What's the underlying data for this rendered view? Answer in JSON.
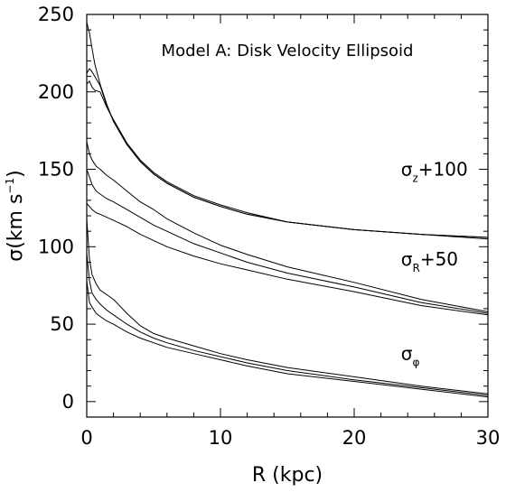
{
  "chart_data": {
    "type": "line",
    "title": "",
    "xlabel": "R (kpc)",
    "ylabel_parts": {
      "sym": "σ",
      "open": "(km s",
      "sup": "−1",
      "close": ")"
    },
    "xlim": [
      0,
      30
    ],
    "ylim": [
      -10,
      250
    ],
    "xticks": [
      0,
      10,
      20,
      30
    ],
    "yticks": [
      0,
      50,
      100,
      150,
      200,
      250
    ],
    "grid": false,
    "legend": "none",
    "annotation": "Model A: Disk Velocity Ellipsoid",
    "series_labels": [
      {
        "main": "σ",
        "sub": "z",
        "suffix": "+100",
        "x": 23.5,
        "y": 146
      },
      {
        "main": "σ",
        "sub": "R",
        "suffix": "+50",
        "x": 23.5,
        "y": 88
      },
      {
        "main": "σ",
        "sub": "φ",
        "suffix": "",
        "x": 23.5,
        "y": 27
      }
    ],
    "series": [
      {
        "group": "z",
        "x": [
          0,
          0.2,
          0.4,
          0.6,
          1,
          1.5,
          2,
          3,
          4,
          5,
          6,
          8,
          10,
          12,
          15,
          20,
          25,
          30
        ],
        "values": [
          245,
          238,
          228,
          218,
          205,
          192,
          181,
          166,
          155,
          147,
          141,
          132,
          126,
          121,
          116,
          111,
          108,
          106
        ]
      },
      {
        "group": "z",
        "x": [
          0,
          0.2,
          0.4,
          0.6,
          1,
          1.5,
          2,
          3,
          4,
          5,
          6,
          8,
          10,
          12,
          15,
          20,
          25,
          30
        ],
        "values": [
          212,
          215,
          213,
          210,
          204,
          191,
          181,
          166,
          155,
          147,
          141,
          132,
          126,
          121,
          116,
          111,
          108,
          106
        ]
      },
      {
        "group": "z",
        "x": [
          0,
          0.2,
          0.4,
          0.6,
          1,
          1.5,
          2,
          3,
          4,
          5,
          6,
          8,
          10,
          12,
          15,
          20,
          25,
          30
        ],
        "values": [
          205,
          207,
          203,
          201,
          200,
          190,
          182,
          167,
          156,
          148,
          142,
          133,
          127,
          122,
          116,
          111,
          108,
          105
        ]
      },
      {
        "group": "R",
        "x": [
          0,
          0.2,
          0.4,
          0.7,
          1,
          1.5,
          2,
          3,
          4,
          5,
          6,
          8,
          10,
          12,
          15,
          20,
          25,
          30
        ],
        "values": [
          168,
          160,
          156,
          152,
          150,
          146,
          143,
          136,
          129,
          124,
          118,
          109,
          101,
          95,
          87,
          77,
          66,
          58
        ]
      },
      {
        "group": "R",
        "x": [
          0,
          0.2,
          0.4,
          0.7,
          1,
          1.5,
          2,
          3,
          4,
          5,
          6,
          8,
          10,
          12,
          15,
          20,
          25,
          30
        ],
        "values": [
          150,
          145,
          140,
          136,
          134,
          131,
          129,
          124,
          119,
          114,
          110,
          102,
          96,
          90,
          83,
          74,
          64,
          57
        ]
      },
      {
        "group": "R",
        "x": [
          0,
          0.2,
          0.4,
          0.7,
          1,
          1.5,
          2,
          3,
          4,
          5,
          6,
          8,
          10,
          12,
          15,
          20,
          25,
          30
        ],
        "values": [
          128,
          126,
          124,
          122,
          121,
          119,
          117,
          113,
          108,
          104,
          100,
          94,
          89,
          85,
          79,
          71,
          62,
          56
        ]
      },
      {
        "group": "phi",
        "x": [
          0,
          0.2,
          0.4,
          0.7,
          1,
          1.5,
          2,
          3,
          4,
          5,
          6,
          8,
          10,
          12,
          15,
          20,
          25,
          30
        ],
        "values": [
          118,
          92,
          82,
          76,
          72,
          69,
          66,
          57,
          49,
          44,
          41,
          36,
          31,
          27,
          22,
          16,
          10,
          5
        ]
      },
      {
        "group": "phi",
        "x": [
          0,
          0.2,
          0.4,
          0.7,
          1,
          1.5,
          2,
          3,
          4,
          5,
          6,
          8,
          10,
          12,
          15,
          20,
          25,
          30
        ],
        "values": [
          96,
          78,
          70,
          66,
          63,
          59,
          56,
          50,
          45,
          41,
          38,
          33,
          29,
          25,
          20,
          14,
          9,
          4
        ]
      },
      {
        "group": "phi",
        "x": [
          0,
          0.2,
          0.4,
          0.7,
          1,
          1.5,
          2,
          3,
          4,
          5,
          6,
          8,
          10,
          12,
          15,
          20,
          25,
          30
        ],
        "values": [
          78,
          64,
          61,
          57,
          55,
          52,
          50,
          45,
          41,
          38,
          35,
          31,
          27,
          23,
          18,
          13,
          8,
          3
        ]
      }
    ]
  }
}
